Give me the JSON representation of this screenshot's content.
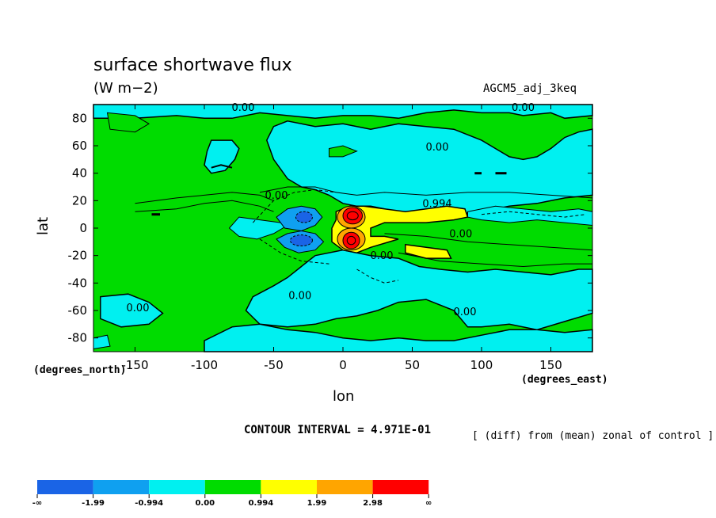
{
  "chart_data": {
    "type": "heatmap",
    "title": "surface shortwave flux",
    "units": "(W m−2)",
    "dataset": "AGCM5_adj_3keq",
    "xlabel": "lon",
    "ylabel": "lat",
    "x_units": "(degrees_east)",
    "y_units": "(degrees_north)",
    "xlim": [
      -180,
      180
    ],
    "ylim": [
      -90,
      90
    ],
    "x_ticks": [
      "-150",
      "-100",
      "-50",
      "0",
      "50",
      "100",
      "150"
    ],
    "y_ticks": [
      "80",
      "60",
      "40",
      "20",
      "0",
      "-20",
      "-40",
      "-60",
      "-80"
    ],
    "contour_interval": "CONTOUR INTERVAL = 4.971E-01",
    "note": "[ (diff) from (mean) zonal of control ]",
    "contour_labels": [
      {
        "text": "0.00",
        "lon": -72,
        "lat": 86
      },
      {
        "text": "0.00",
        "lon": 130,
        "lat": 86
      },
      {
        "text": "0.00",
        "lon": 68,
        "lat": 57
      },
      {
        "text": "0.00",
        "lon": -48,
        "lat": 22
      },
      {
        "text": "0.994",
        "lon": 68,
        "lat": 16
      },
      {
        "text": "0.00",
        "lon": 85,
        "lat": -6
      },
      {
        "text": "0.00",
        "lon": 28,
        "lat": -22
      },
      {
        "text": "0.00",
        "lon": -31,
        "lat": -51
      },
      {
        "text": "0.00",
        "lon": -148,
        "lat": -60
      },
      {
        "text": "0.00",
        "lon": 88,
        "lat": -63
      }
    ],
    "levels": [
      {
        "label": "-∞",
        "color": "#1a64e6"
      },
      {
        "label": "-1.99",
        "color": "#0fa0f0"
      },
      {
        "label": "-0.994",
        "color": "#00f0f0"
      },
      {
        "label": "0.00",
        "color": "#00dc00"
      },
      {
        "label": "0.994",
        "color": "#ffff00"
      },
      {
        "label": "1.99",
        "color": "#ffa500"
      },
      {
        "label": "2.98",
        "color": "#ff0000"
      },
      {
        "label": "∞",
        "color": ""
      }
    ]
  }
}
